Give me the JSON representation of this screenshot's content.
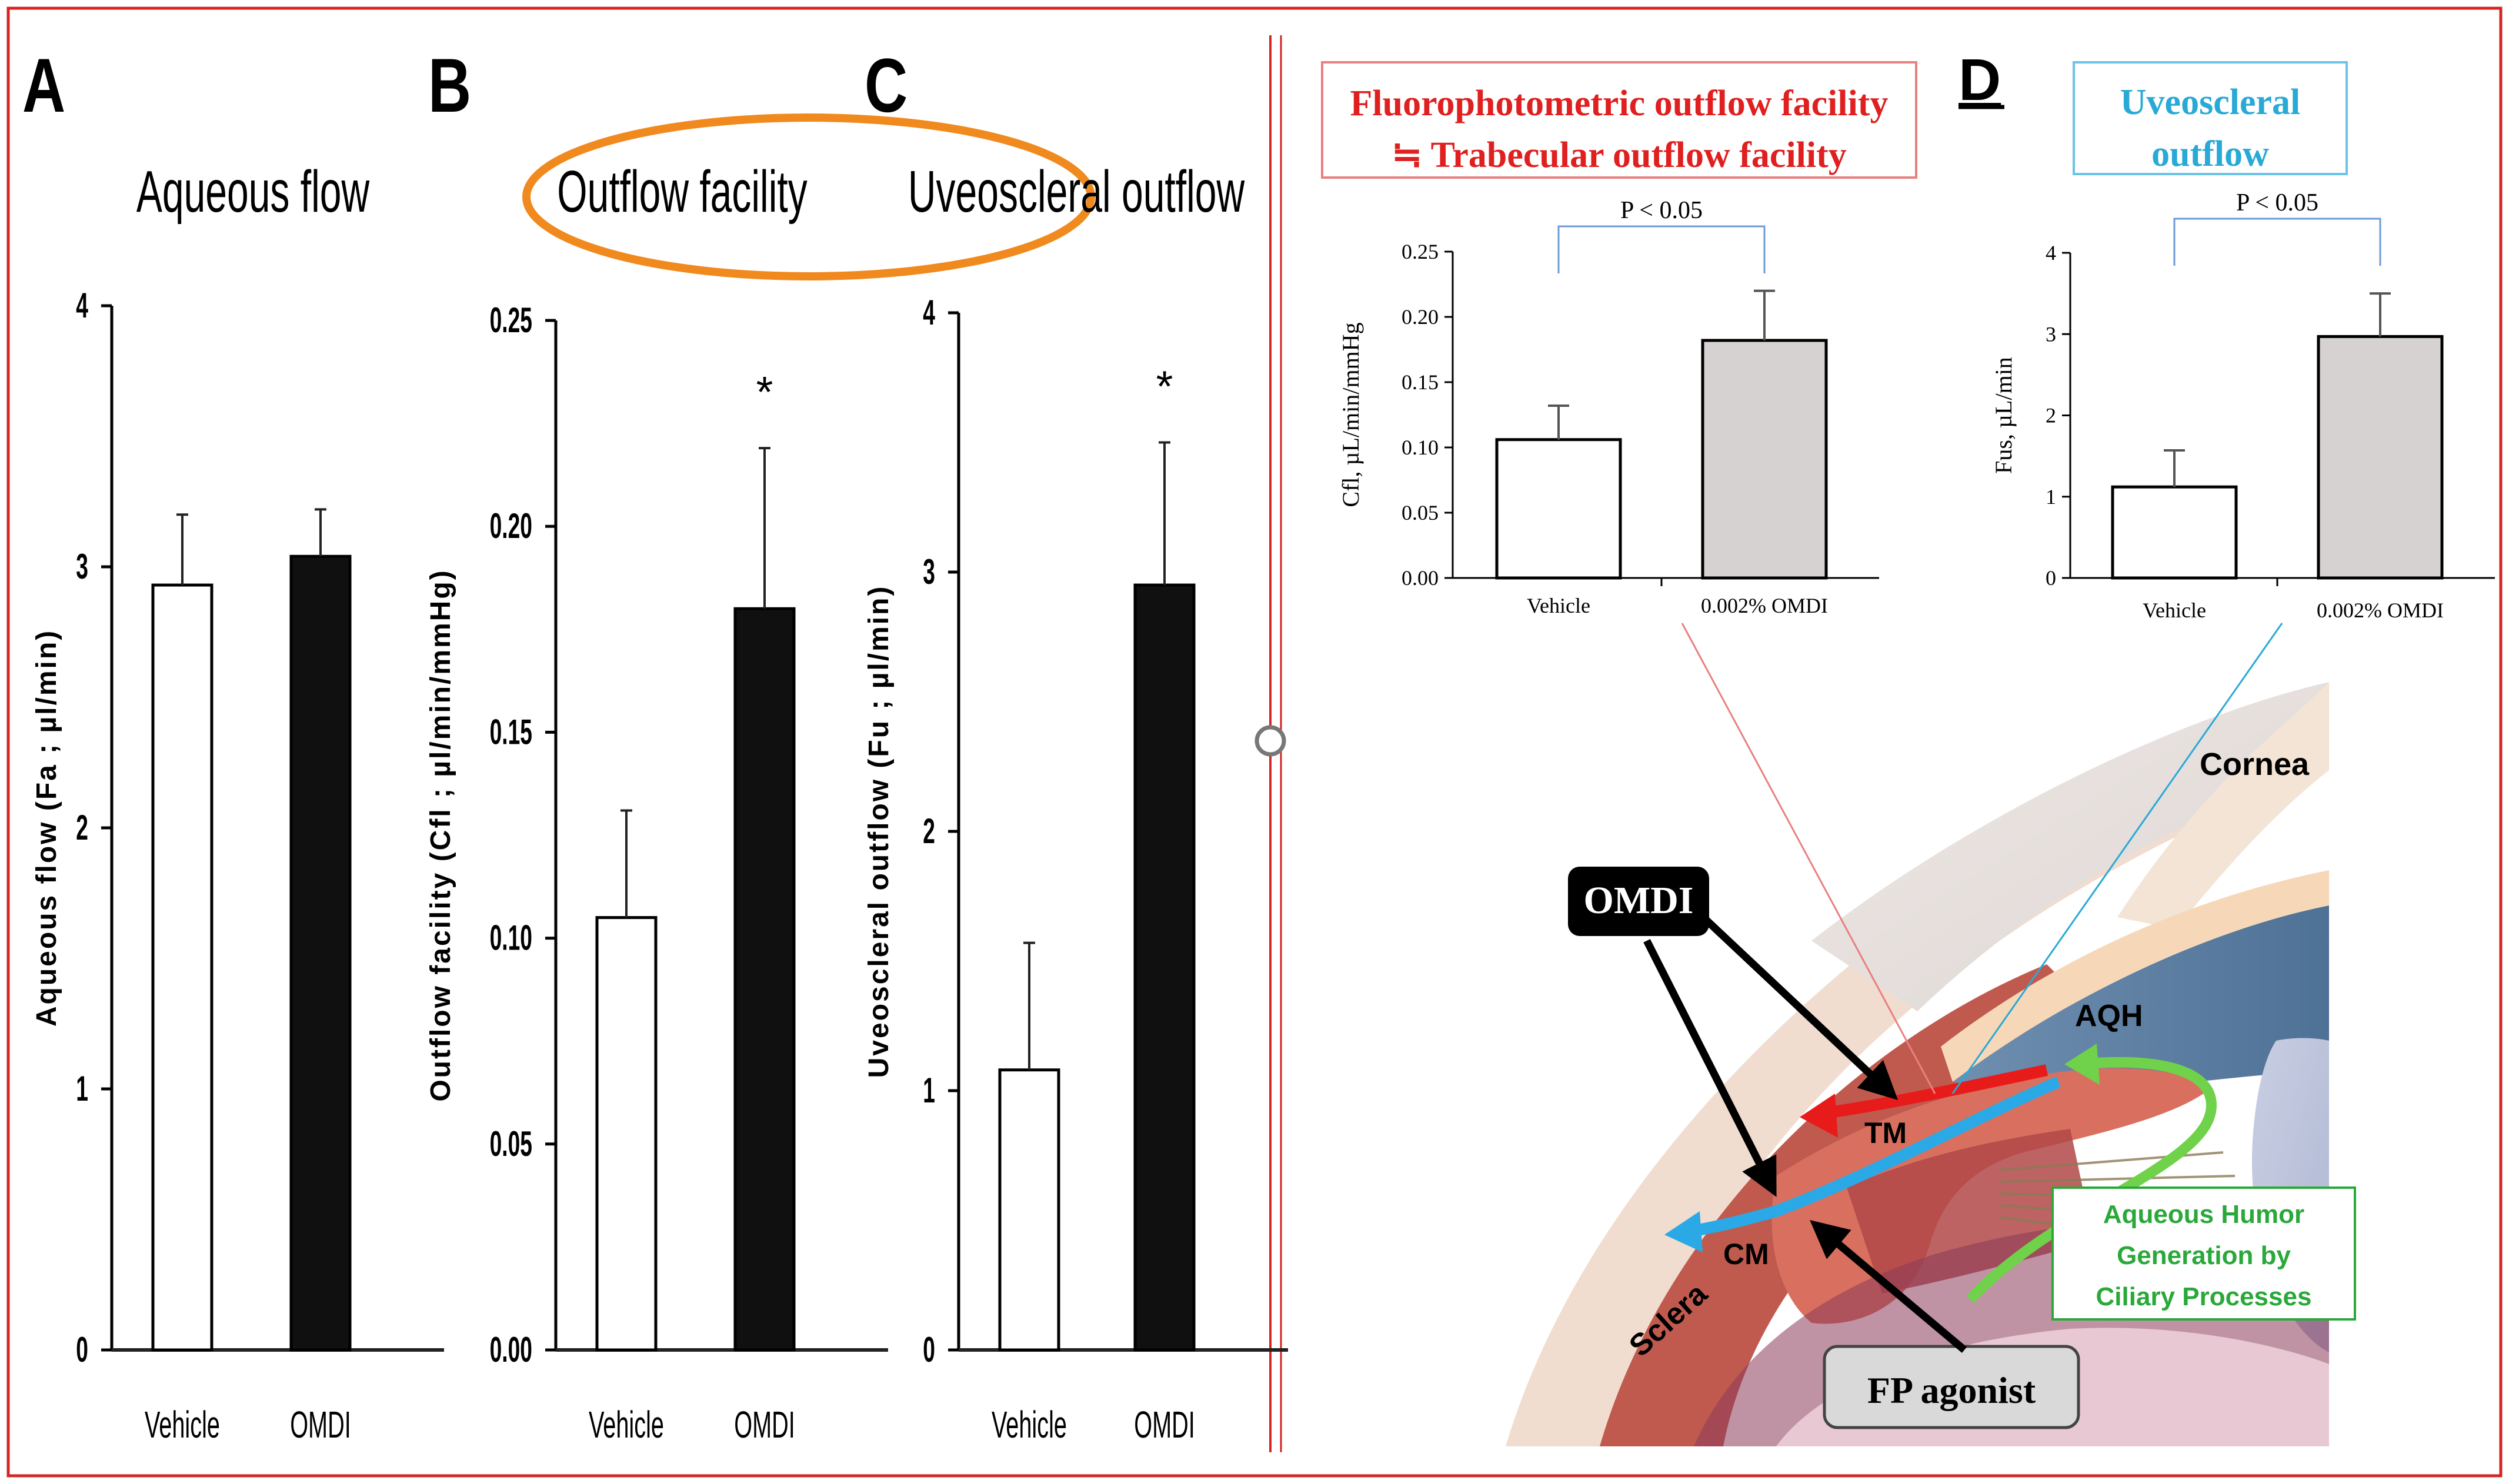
{
  "colors": {
    "frame": "#d42424",
    "orange": "#f08a1e",
    "red_label": "#e01f1f",
    "blue_label": "#29a9d6",
    "green_label": "#2aa83a",
    "bar_gray": "#d6d2d2",
    "bar_black": "#101010"
  },
  "panels": {
    "a_letter": "A",
    "b_letter": "B",
    "c_letter": "C",
    "d_letter": "D"
  },
  "chart_data": [
    {
      "id": "A",
      "type": "bar",
      "title": "Aqueous flow",
      "ylabel": "Aqueous flow (Fa ; µl/min)",
      "categories": [
        "Vehicle",
        "OMDI"
      ],
      "values": [
        2.93,
        3.04
      ],
      "errors": [
        0.27,
        0.18
      ],
      "ylim": [
        0,
        4
      ],
      "yticks": [
        "0",
        "1",
        "2",
        "3",
        "4"
      ],
      "significance": [
        "",
        ""
      ]
    },
    {
      "id": "B",
      "type": "bar",
      "title": "Outflow facility",
      "ylabel": "Outflow facility (Cfl ; µl/min/mmHg)",
      "categories": [
        "Vehicle",
        "OMDI"
      ],
      "values": [
        0.105,
        0.18
      ],
      "errors": [
        0.026,
        0.039
      ],
      "ylim": [
        0,
        0.25
      ],
      "yticks": [
        "0.00",
        "0.05",
        "0.10",
        "0.15",
        "0.20",
        "0.25"
      ],
      "significance": [
        "",
        "*"
      ]
    },
    {
      "id": "C",
      "type": "bar",
      "title": "Uveoscleral outflow",
      "ylabel": "Uveoscleral outflow (Fu ; µl/min)",
      "categories": [
        "Vehicle",
        "OMDI"
      ],
      "values": [
        1.08,
        2.95
      ],
      "errors": [
        0.49,
        0.55
      ],
      "ylim": [
        0,
        4
      ],
      "yticks": [
        "0",
        "1",
        "2",
        "3",
        "4"
      ],
      "significance": [
        "",
        "*"
      ]
    },
    {
      "id": "D-left",
      "type": "bar",
      "title": "Fluorophotometric outflow facility ≒ Trabecular outflow facility",
      "ylabel": "Cfl, µL/min/mmHg",
      "categories": [
        "Vehicle",
        "0.002% OMDI"
      ],
      "values": [
        0.106,
        0.182
      ],
      "errors": [
        0.026,
        0.038
      ],
      "ylim": [
        0,
        0.25
      ],
      "yticks": [
        "0.00",
        "0.05",
        "0.10",
        "0.15",
        "0.20",
        "0.25"
      ],
      "comparison": "P < 0.05"
    },
    {
      "id": "D-right",
      "type": "bar",
      "title": "Uveoscleral outflow",
      "ylabel": "Fus, µL/min",
      "categories": [
        "Vehicle",
        "0.002% OMDI"
      ],
      "values": [
        1.12,
        2.97
      ],
      "errors": [
        0.45,
        0.53
      ],
      "ylim": [
        0,
        4
      ],
      "yticks": [
        "0",
        "1",
        "2",
        "3",
        "4"
      ],
      "comparison": "P < 0.05"
    }
  ],
  "diagram": {
    "box_red_line1": "Fluorophotometric outflow facility",
    "box_red_line2": "≒ Trabecular outflow facility",
    "box_blue_line1": "Uveoscleral",
    "box_blue_line2": "outflow",
    "omdi_label": "OMDI",
    "fp_label": "FP agonist",
    "cornea": "Cornea",
    "aqh": "AQH",
    "tm": "TM",
    "cm": "CM",
    "sclera": "Sclera",
    "green_line1": "Aqueous Humor",
    "green_line2": "Generation by",
    "green_line3": "Ciliary Processes"
  }
}
